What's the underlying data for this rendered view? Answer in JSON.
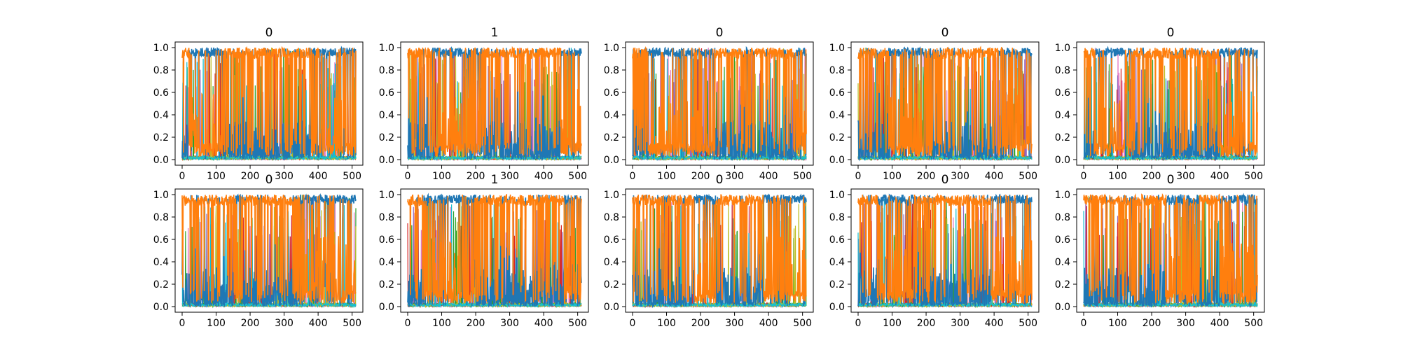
{
  "figure": {
    "rows": 2,
    "cols": 5
  },
  "chart_data": [
    {
      "type": "line",
      "title": "0",
      "xlim": [
        0,
        511
      ],
      "ylim": [
        0,
        1
      ],
      "xticks": [
        "0",
        "100",
        "200",
        "300",
        "400",
        "500"
      ],
      "yticks": [
        "0.0",
        "0.2",
        "0.4",
        "0.6",
        "0.8",
        "1.0"
      ],
      "grid": false,
      "seed": 11,
      "segments": [
        {
          "start": 0,
          "end": 20,
          "dom": "orange"
        },
        {
          "start": 20,
          "end": 120,
          "dom": "blue"
        },
        {
          "start": 120,
          "end": 380,
          "dom": "orange"
        },
        {
          "start": 380,
          "end": 511,
          "dom": "blue"
        }
      ],
      "series_colors": [
        "#1f77b4",
        "#ff7f0e",
        "#17becf",
        "#bcbd22",
        "#2ca02c",
        "#d62728",
        "#9467bd",
        "#e377c2"
      ]
    },
    {
      "type": "line",
      "title": "1",
      "xlim": [
        0,
        511
      ],
      "ylim": [
        0,
        1
      ],
      "xticks": [
        "0",
        "100",
        "200",
        "300",
        "400",
        "500"
      ],
      "yticks": [
        "0.0",
        "0.2",
        "0.4",
        "0.6",
        "0.8",
        "1.0"
      ],
      "grid": false,
      "seed": 23,
      "segments": [
        {
          "start": 0,
          "end": 70,
          "dom": "orange"
        },
        {
          "start": 70,
          "end": 220,
          "dom": "blue"
        },
        {
          "start": 220,
          "end": 450,
          "dom": "orange"
        },
        {
          "start": 450,
          "end": 511,
          "dom": "blue"
        }
      ],
      "series_colors": [
        "#1f77b4",
        "#ff7f0e",
        "#17becf",
        "#bcbd22",
        "#2ca02c",
        "#d62728",
        "#9467bd",
        "#e377c2"
      ]
    },
    {
      "type": "line",
      "title": "0",
      "xlim": [
        0,
        511
      ],
      "ylim": [
        0,
        1
      ],
      "xticks": [
        "0",
        "100",
        "200",
        "300",
        "400",
        "500"
      ],
      "yticks": [
        "0.0",
        "0.2",
        "0.4",
        "0.6",
        "0.8",
        "1.0"
      ],
      "grid": false,
      "seed": 37,
      "segments": [
        {
          "start": 0,
          "end": 45,
          "dom": "orange"
        },
        {
          "start": 45,
          "end": 240,
          "dom": "blue"
        },
        {
          "start": 240,
          "end": 480,
          "dom": "orange"
        },
        {
          "start": 480,
          "end": 511,
          "dom": "blue"
        }
      ],
      "series_colors": [
        "#1f77b4",
        "#ff7f0e",
        "#17becf",
        "#bcbd22",
        "#2ca02c",
        "#d62728",
        "#9467bd",
        "#e377c2"
      ]
    },
    {
      "type": "line",
      "title": "0",
      "xlim": [
        0,
        511
      ],
      "ylim": [
        0,
        1
      ],
      "xticks": [
        "0",
        "100",
        "200",
        "300",
        "400",
        "500"
      ],
      "yticks": [
        "0.0",
        "0.2",
        "0.4",
        "0.6",
        "0.8",
        "1.0"
      ],
      "grid": false,
      "seed": 41,
      "segments": [
        {
          "start": 0,
          "end": 90,
          "dom": "orange"
        },
        {
          "start": 90,
          "end": 220,
          "dom": "blue"
        },
        {
          "start": 220,
          "end": 410,
          "dom": "orange"
        },
        {
          "start": 410,
          "end": 511,
          "dom": "blue"
        }
      ],
      "series_colors": [
        "#1f77b4",
        "#ff7f0e",
        "#17becf",
        "#bcbd22",
        "#2ca02c",
        "#d62728",
        "#9467bd",
        "#e377c2"
      ]
    },
    {
      "type": "line",
      "title": "0",
      "xlim": [
        0,
        511
      ],
      "ylim": [
        0,
        1
      ],
      "xticks": [
        "0",
        "100",
        "200",
        "300",
        "400",
        "500"
      ],
      "yticks": [
        "0.0",
        "0.2",
        "0.4",
        "0.6",
        "0.8",
        "1.0"
      ],
      "grid": false,
      "seed": 53,
      "segments": [
        {
          "start": 0,
          "end": 30,
          "dom": "orange"
        },
        {
          "start": 30,
          "end": 140,
          "dom": "blue"
        },
        {
          "start": 140,
          "end": 400,
          "dom": "orange"
        },
        {
          "start": 400,
          "end": 511,
          "dom": "blue"
        }
      ],
      "series_colors": [
        "#1f77b4",
        "#ff7f0e",
        "#17becf",
        "#bcbd22",
        "#2ca02c",
        "#d62728",
        "#9467bd",
        "#e377c2"
      ]
    },
    {
      "type": "line",
      "title": "0",
      "xlim": [
        0,
        511
      ],
      "ylim": [
        0,
        1
      ],
      "xticks": [
        "0",
        "100",
        "200",
        "300",
        "400",
        "500"
      ],
      "yticks": [
        "0.0",
        "0.2",
        "0.4",
        "0.6",
        "0.8",
        "1.0"
      ],
      "grid": false,
      "seed": 61,
      "segments": [
        {
          "start": 0,
          "end": 150,
          "dom": "orange"
        },
        {
          "start": 150,
          "end": 175,
          "dom": "blue"
        },
        {
          "start": 175,
          "end": 345,
          "dom": "orange"
        },
        {
          "start": 345,
          "end": 511,
          "dom": "blue"
        }
      ],
      "series_colors": [
        "#1f77b4",
        "#ff7f0e",
        "#17becf",
        "#bcbd22",
        "#2ca02c",
        "#d62728",
        "#9467bd",
        "#e377c2"
      ]
    },
    {
      "type": "line",
      "title": "1",
      "xlim": [
        0,
        511
      ],
      "ylim": [
        0,
        1
      ],
      "xticks": [
        "0",
        "100",
        "200",
        "300",
        "400",
        "500"
      ],
      "yticks": [
        "0.0",
        "0.2",
        "0.4",
        "0.6",
        "0.8",
        "1.0"
      ],
      "grid": false,
      "seed": 71,
      "segments": [
        {
          "start": 0,
          "end": 40,
          "dom": "orange"
        },
        {
          "start": 40,
          "end": 200,
          "dom": "blue"
        },
        {
          "start": 200,
          "end": 460,
          "dom": "orange"
        },
        {
          "start": 460,
          "end": 511,
          "dom": "blue"
        }
      ],
      "series_colors": [
        "#1f77b4",
        "#ff7f0e",
        "#17becf",
        "#bcbd22",
        "#2ca02c",
        "#d62728",
        "#9467bd",
        "#e377c2"
      ]
    },
    {
      "type": "line",
      "title": "0",
      "xlim": [
        0,
        511
      ],
      "ylim": [
        0,
        1
      ],
      "xticks": [
        "0",
        "100",
        "200",
        "300",
        "400",
        "500"
      ],
      "yticks": [
        "0.0",
        "0.2",
        "0.4",
        "0.6",
        "0.8",
        "1.0"
      ],
      "grid": false,
      "seed": 83,
      "segments": [
        {
          "start": 0,
          "end": 180,
          "dom": "orange"
        },
        {
          "start": 180,
          "end": 240,
          "dom": "blue"
        },
        {
          "start": 240,
          "end": 385,
          "dom": "orange"
        },
        {
          "start": 385,
          "end": 511,
          "dom": "blue"
        }
      ],
      "series_colors": [
        "#1f77b4",
        "#ff7f0e",
        "#17becf",
        "#bcbd22",
        "#2ca02c",
        "#d62728",
        "#9467bd",
        "#e377c2"
      ]
    },
    {
      "type": "line",
      "title": "0",
      "xlim": [
        0,
        511
      ],
      "ylim": [
        0,
        1
      ],
      "xticks": [
        "0",
        "100",
        "200",
        "300",
        "400",
        "500"
      ],
      "yticks": [
        "0.0",
        "0.2",
        "0.4",
        "0.6",
        "0.8",
        "1.0"
      ],
      "grid": false,
      "seed": 97,
      "segments": [
        {
          "start": 0,
          "end": 60,
          "dom": "orange"
        },
        {
          "start": 60,
          "end": 165,
          "dom": "blue"
        },
        {
          "start": 165,
          "end": 390,
          "dom": "orange"
        },
        {
          "start": 390,
          "end": 511,
          "dom": "blue"
        }
      ],
      "series_colors": [
        "#1f77b4",
        "#ff7f0e",
        "#17becf",
        "#bcbd22",
        "#2ca02c",
        "#d62728",
        "#9467bd",
        "#e377c2"
      ]
    },
    {
      "type": "line",
      "title": "0",
      "xlim": [
        0,
        511
      ],
      "ylim": [
        0,
        1
      ],
      "xticks": [
        "0",
        "100",
        "200",
        "300",
        "400",
        "500"
      ],
      "yticks": [
        "0.0",
        "0.2",
        "0.4",
        "0.6",
        "0.8",
        "1.0"
      ],
      "grid": false,
      "seed": 103,
      "segments": [
        {
          "start": 0,
          "end": 240,
          "dom": "orange"
        },
        {
          "start": 240,
          "end": 340,
          "dom": "blue"
        },
        {
          "start": 340,
          "end": 400,
          "dom": "orange"
        },
        {
          "start": 400,
          "end": 511,
          "dom": "blue"
        }
      ],
      "series_colors": [
        "#1f77b4",
        "#ff7f0e",
        "#17becf",
        "#bcbd22",
        "#2ca02c",
        "#d62728",
        "#9467bd",
        "#e377c2"
      ]
    }
  ]
}
